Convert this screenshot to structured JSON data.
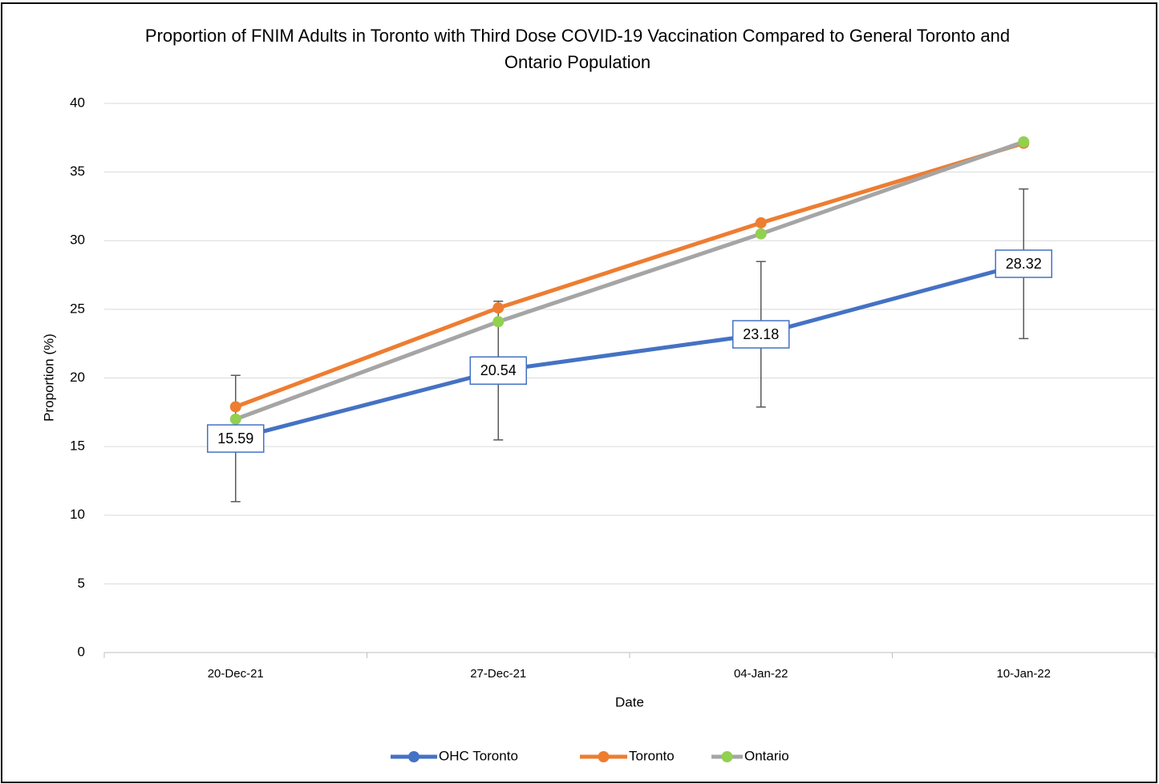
{
  "chart_data": {
    "type": "line",
    "title": "Proportion of FNIM Adults in Toronto with Third Dose COVID-19 Vaccination Compared to General Toronto and Ontario Population",
    "x_label": "Date",
    "y_label": "Proportion (%)",
    "categories": [
      "20-Dec-21",
      "27-Dec-21",
      "04-Jan-22",
      "10-Jan-22"
    ],
    "series": [
      {
        "name": "OHC Toronto",
        "color": "#4472c4",
        "marker_color": "#4472c4",
        "values": [
          15.59,
          20.54,
          23.18,
          28.32
        ],
        "errors": [
          4.6,
          5.05,
          5.3,
          5.45
        ],
        "data_labels": true
      },
      {
        "name": "Toronto",
        "color": "#ed7d31",
        "marker_color": "#ed7d31",
        "values": [
          17.9,
          25.1,
          31.3,
          37.1
        ]
      },
      {
        "name": "Ontario",
        "color": "#a5a5a5",
        "marker_color": "#92d050",
        "values": [
          17.0,
          24.1,
          30.5,
          37.2
        ]
      }
    ],
    "ylim": [
      0,
      40
    ],
    "yticks": [
      0,
      5,
      10,
      15,
      20,
      25,
      30,
      35,
      40
    ],
    "grid": true,
    "legend": "bottom"
  }
}
